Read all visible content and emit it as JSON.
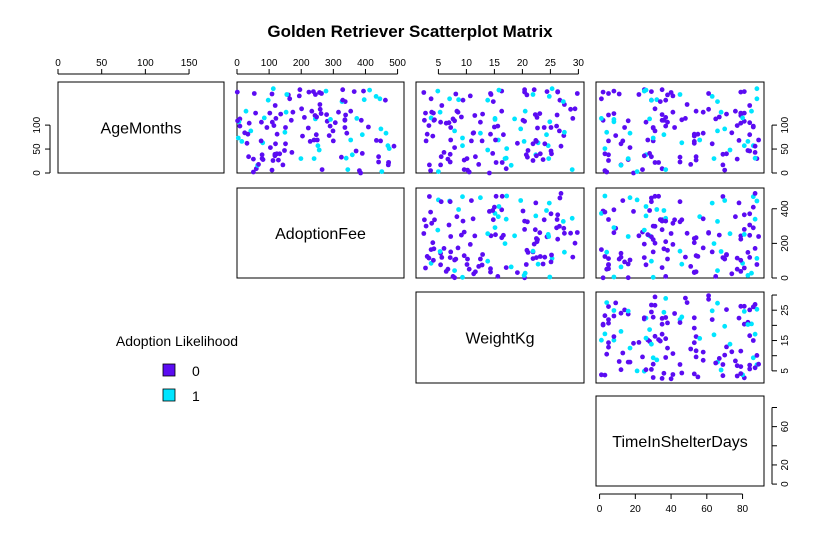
{
  "chart_data": {
    "type": "scatter",
    "subtype": "scatterplot-matrix-upper",
    "title": "Golden Retriever Scatterplot Matrix",
    "variables": [
      {
        "name": "AgeMonths",
        "range": [
          0,
          190
        ],
        "ticks": [
          0,
          50,
          100,
          150
        ],
        "top_ticks": [
          0,
          50,
          100,
          150
        ],
        "right_ticks": [
          0,
          50,
          100
        ]
      },
      {
        "name": "AdoptionFee",
        "range": [
          0,
          520
        ],
        "ticks": [
          0,
          100,
          200,
          300,
          400,
          500
        ],
        "top_ticks": [
          0,
          100,
          200,
          300,
          400,
          500
        ],
        "right_ticks": [
          0,
          200,
          400
        ]
      },
      {
        "name": "WeightKg",
        "range": [
          1,
          31
        ],
        "ticks": [
          5,
          10,
          15,
          20,
          25,
          30
        ],
        "top_ticks": [
          5,
          10,
          15,
          20,
          25,
          30
        ],
        "right_ticks": [
          5,
          15,
          25
        ],
        "right_ticks_minor": [
          10,
          20,
          30
        ]
      },
      {
        "name": "TimeInShelterDays",
        "range": [
          -2,
          92
        ],
        "ticks": [
          0,
          20,
          40,
          60,
          80
        ],
        "bottom_ticks": [
          0,
          20,
          40,
          60,
          80
        ],
        "right_ticks": [
          0,
          20,
          60
        ],
        "right_ticks_minor": [
          40,
          80
        ]
      }
    ],
    "legend": {
      "title": "Adoption Likelihood",
      "placement": "left-middle",
      "entries": [
        {
          "label": "0",
          "color": "#5b0cf2"
        },
        {
          "label": "1",
          "color": "#00e5ff"
        }
      ]
    },
    "group_colors": {
      "0": "#5b0cf2",
      "1": "#00e5ff"
    },
    "n_points": 140
  }
}
